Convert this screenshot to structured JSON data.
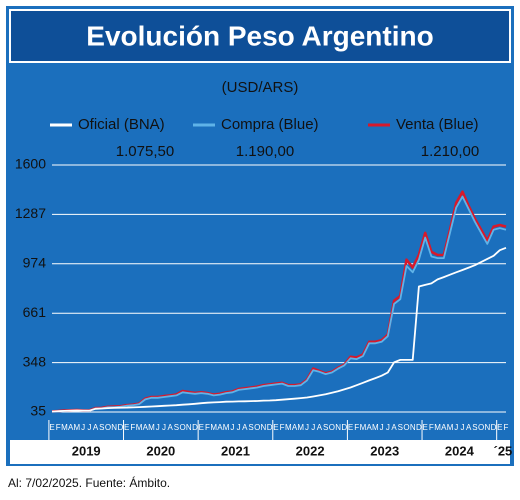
{
  "chart_data": {
    "type": "line",
    "title": "Evolución Peso Argentino",
    "subtitle": "(USD/ARS)",
    "categories": [
      "E",
      "F",
      "M",
      "A",
      "M",
      "J",
      "J",
      "A",
      "S",
      "O",
      "N",
      "D",
      "E",
      "F",
      "M",
      "A",
      "M",
      "J",
      "J",
      "A",
      "S",
      "O",
      "N",
      "D",
      "E",
      "F",
      "M",
      "A",
      "M",
      "J",
      "J",
      "A",
      "S",
      "O",
      "N",
      "D",
      "E",
      "F",
      "M",
      "A",
      "M",
      "J",
      "J",
      "A",
      "S",
      "O",
      "N",
      "D",
      "E",
      "F",
      "M",
      "A",
      "M",
      "J",
      "J",
      "A",
      "S",
      "O",
      "N",
      "D",
      "E",
      "F",
      "M",
      "A",
      "M",
      "J",
      "J",
      "A",
      "S",
      "O",
      "N",
      "D",
      "E",
      "F"
    ],
    "years": [
      "2019",
      "2020",
      "2021",
      "2022",
      "2023",
      "2024",
      "´25"
    ],
    "series": [
      {
        "name": "Venta (Blue)",
        "color": "#d7192b",
        "latest_label": "1.210,00",
        "values": [
          39,
          41,
          44,
          46,
          47,
          45,
          44,
          60,
          61,
          68,
          69,
          71,
          78,
          81,
          88,
          120,
          130,
          130,
          136,
          140,
          146,
          168,
          162,
          156,
          160,
          155,
          145,
          150,
          160,
          165,
          180,
          185,
          190,
          195,
          205,
          210,
          215,
          220,
          205,
          205,
          210,
          240,
          310,
          295,
          280,
          290,
          315,
          335,
          385,
          380,
          400,
          480,
          480,
          490,
          525,
          740,
          770,
          1000,
          950,
          1030,
          1170,
          1050,
          1030,
          1030,
          1190,
          1360,
          1430,
          1340,
          1260,
          1190,
          1120,
          1210,
          1220,
          1210
        ]
      },
      {
        "name": "Compra (Blue)",
        "color": "#5fb3e8",
        "latest_label": "1.190,00",
        "values": [
          37,
          39,
          42,
          44,
          45,
          43,
          42,
          57,
          58,
          65,
          66,
          68,
          75,
          78,
          85,
          115,
          125,
          125,
          130,
          135,
          140,
          160,
          155,
          150,
          155,
          150,
          140,
          145,
          155,
          160,
          175,
          180,
          185,
          190,
          200,
          205,
          210,
          215,
          200,
          200,
          205,
          235,
          300,
          290,
          275,
          285,
          310,
          330,
          375,
          370,
          390,
          470,
          470,
          480,
          515,
          720,
          750,
          960,
          920,
          1000,
          1140,
          1020,
          1010,
          1010,
          1170,
          1330,
          1400,
          1320,
          1240,
          1170,
          1100,
          1190,
          1200,
          1190
        ]
      },
      {
        "name": "Oficial (BNA)",
        "color": "#ffffff",
        "latest_label": "1.075,50",
        "values": [
          38,
          40,
          42,
          44,
          45,
          44,
          43,
          55,
          57,
          60,
          61,
          62,
          63,
          64,
          66,
          68,
          70,
          72,
          74,
          76,
          78,
          81,
          84,
          87,
          91,
          94,
          96,
          98,
          100,
          101,
          102,
          103,
          104,
          105,
          107,
          108,
          110,
          113,
          116,
          119,
          123,
          127,
          133,
          140,
          147,
          157,
          167,
          178,
          190,
          205,
          220,
          235,
          250,
          265,
          285,
          350,
          365,
          365,
          365,
          830,
          840,
          850,
          875,
          890,
          905,
          920,
          935,
          950,
          965,
          985,
          1005,
          1025,
          1060,
          1075.5
        ]
      }
    ],
    "legend_order": [
      2,
      1,
      0
    ],
    "ylim": [
      35,
      1600
    ],
    "yticks": [
      35,
      348,
      661,
      974,
      1287,
      1600
    ],
    "grid": true,
    "note": "Al: 7/02/2025. Fuente: Ámbito."
  }
}
